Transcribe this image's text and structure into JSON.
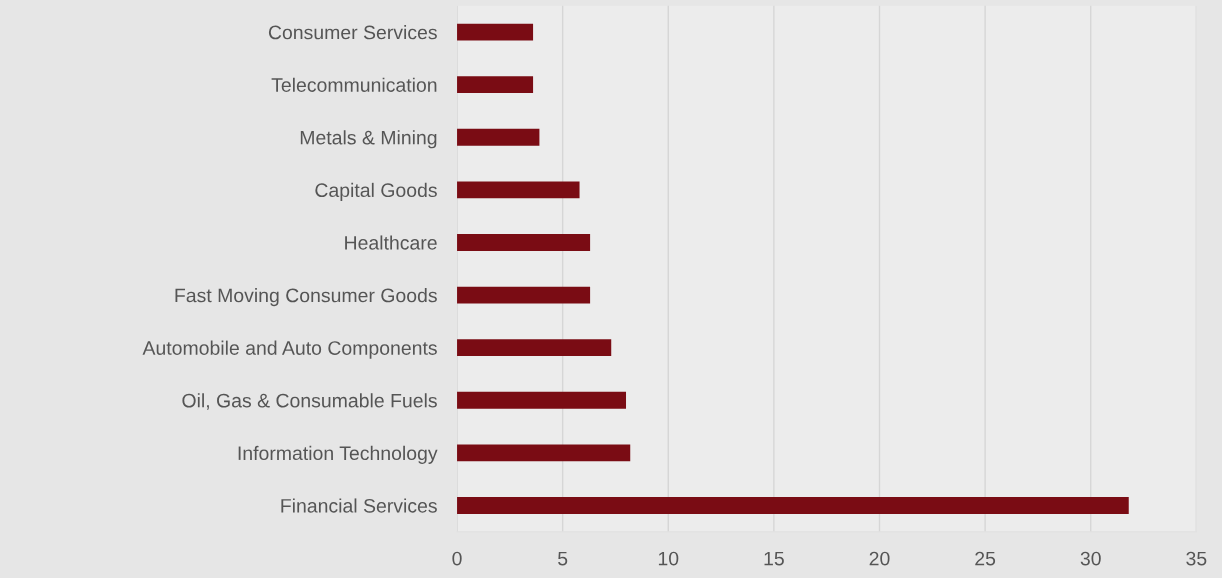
{
  "chart_data": {
    "type": "bar",
    "orientation": "horizontal",
    "categories": [
      "Consumer Services",
      "Telecommunication",
      "Metals & Mining",
      "Capital Goods",
      "Healthcare",
      "Fast Moving Consumer Goods",
      "Automobile and Auto Components",
      "Oil, Gas & Consumable Fuels",
      "Information Technology",
      "Financial Services"
    ],
    "values": [
      3.6,
      3.6,
      3.9,
      5.8,
      6.3,
      6.3,
      7.3,
      8.0,
      8.2,
      31.8
    ],
    "color": "#7a0c14",
    "xlim": [
      0,
      35
    ],
    "xticks": [
      0,
      5,
      10,
      15,
      20,
      25,
      30,
      35
    ],
    "grid": "x",
    "legend": false
  }
}
